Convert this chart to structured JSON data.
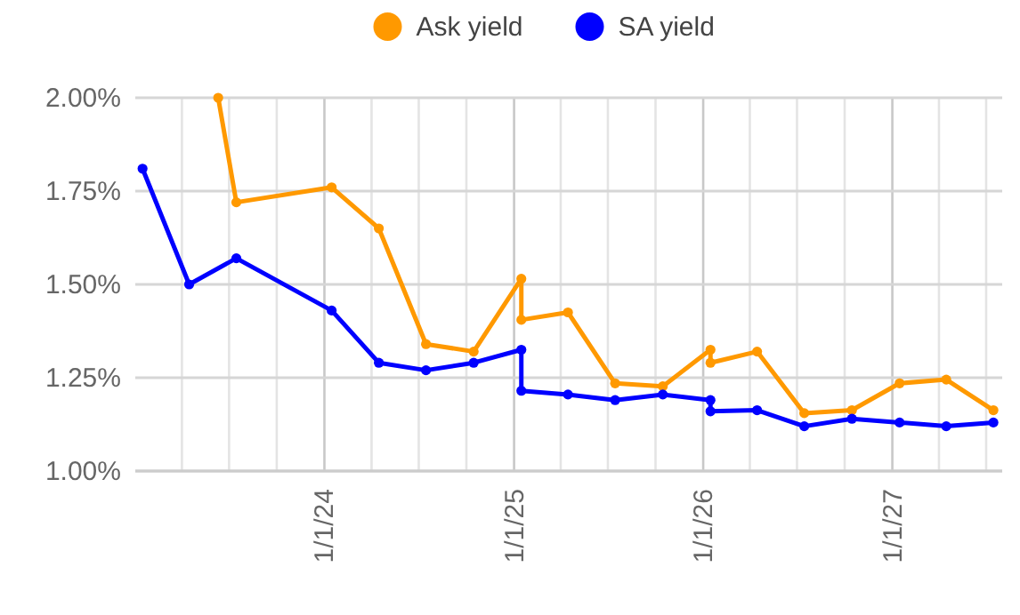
{
  "chart_data": {
    "type": "line",
    "legend": "top",
    "grid": true,
    "marker": "circle",
    "line_style": "solid",
    "xlim": [
      "2023-01-01",
      "2027-08-01"
    ],
    "xticks": [
      {
        "value": "2023-04-01",
        "label": null
      },
      {
        "value": "2023-07-01",
        "label": null
      },
      {
        "value": "2023-10-01",
        "label": null
      },
      {
        "value": "2024-01-01",
        "label": "1/1/24"
      },
      {
        "value": "2024-04-01",
        "label": null
      },
      {
        "value": "2024-07-01",
        "label": null
      },
      {
        "value": "2024-10-01",
        "label": null
      },
      {
        "value": "2025-01-01",
        "label": "1/1/25"
      },
      {
        "value": "2025-04-01",
        "label": null
      },
      {
        "value": "2025-07-01",
        "label": null
      },
      {
        "value": "2025-10-01",
        "label": null
      },
      {
        "value": "2026-01-01",
        "label": "1/1/26"
      },
      {
        "value": "2026-04-01",
        "label": null
      },
      {
        "value": "2026-07-01",
        "label": null
      },
      {
        "value": "2026-10-01",
        "label": null
      },
      {
        "value": "2027-01-01",
        "label": "1/1/27"
      },
      {
        "value": "2027-04-01",
        "label": null
      },
      {
        "value": "2027-07-01",
        "label": null
      }
    ],
    "ylim": [
      1,
      2
    ],
    "yticks": [
      {
        "value": 1,
        "label": "1.00%"
      },
      {
        "value": 1.25,
        "label": "1.25%"
      },
      {
        "value": 1.5,
        "label": "1.50%"
      },
      {
        "value": 1.75,
        "label": "1.75%"
      },
      {
        "value": 2,
        "label": "2.00%"
      }
    ],
    "series": [
      {
        "name": "Ask yield",
        "color": "#ff9900",
        "x": [
          "2023-06-10",
          "2023-07-15",
          "2024-01-15",
          "2024-04-15",
          "2024-07-15",
          "2024-10-15",
          "2025-01-15",
          "2025-01-15",
          "2025-04-15",
          "2025-07-15",
          "2025-10-15",
          "2026-01-15",
          "2026-01-15",
          "2026-04-15",
          "2026-07-15",
          "2026-10-15",
          "2027-01-15",
          "2027-04-15",
          "2027-07-15"
        ],
        "values": [
          2.0,
          1.72,
          1.76,
          1.65,
          1.34,
          1.32,
          1.515,
          1.405,
          1.425,
          1.235,
          1.227,
          1.325,
          1.29,
          1.32,
          1.155,
          1.163,
          1.235,
          1.245,
          1.163
        ]
      },
      {
        "name": "SA yield",
        "color": "#0000ff",
        "x": [
          "2023-01-15",
          "2023-04-15",
          "2023-07-15",
          "2024-01-15",
          "2024-04-15",
          "2024-07-15",
          "2024-10-15",
          "2025-01-15",
          "2025-01-15",
          "2025-04-15",
          "2025-07-15",
          "2025-10-15",
          "2026-01-15",
          "2026-01-15",
          "2026-04-15",
          "2026-07-15",
          "2026-10-15",
          "2027-01-15",
          "2027-04-15",
          "2027-07-15"
        ],
        "values": [
          1.81,
          1.5,
          1.57,
          1.43,
          1.29,
          1.27,
          1.29,
          1.325,
          1.215,
          1.205,
          1.19,
          1.205,
          1.19,
          1.16,
          1.163,
          1.12,
          1.14,
          1.13,
          1.12,
          1.13
        ]
      }
    ]
  }
}
